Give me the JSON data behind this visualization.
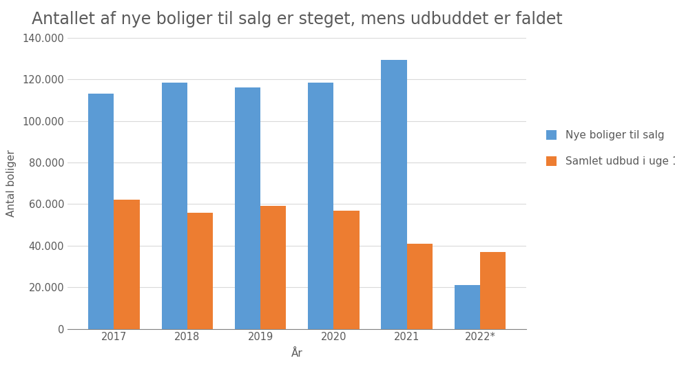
{
  "title": "Antallet af nye boliger til salg er steget, mens udbuddet er faldet",
  "categories": [
    "2017",
    "2018",
    "2019",
    "2020",
    "2021",
    "2022*"
  ],
  "nye_boliger": [
    113000,
    118500,
    116000,
    118500,
    129500,
    21000
  ],
  "samlet_udbud": [
    62000,
    56000,
    59000,
    57000,
    41000,
    37000
  ],
  "blue_color": "#5B9BD5",
  "orange_color": "#ED7D31",
  "ylabel": "Antal boliger",
  "xlabel": "År",
  "legend_blue": "Nye boliger til salg",
  "legend_orange": "Samlet udbud i uge 1",
  "ylim": [
    0,
    140000
  ],
  "yticks": [
    0,
    20000,
    40000,
    60000,
    80000,
    100000,
    120000,
    140000
  ],
  "background_color": "#ffffff",
  "title_color": "#595959",
  "title_fontsize": 17,
  "label_fontsize": 11,
  "tick_fontsize": 10.5,
  "legend_fontsize": 11,
  "bar_width": 0.35,
  "grid_color": "#d9d9d9",
  "axis_color": "#808080"
}
